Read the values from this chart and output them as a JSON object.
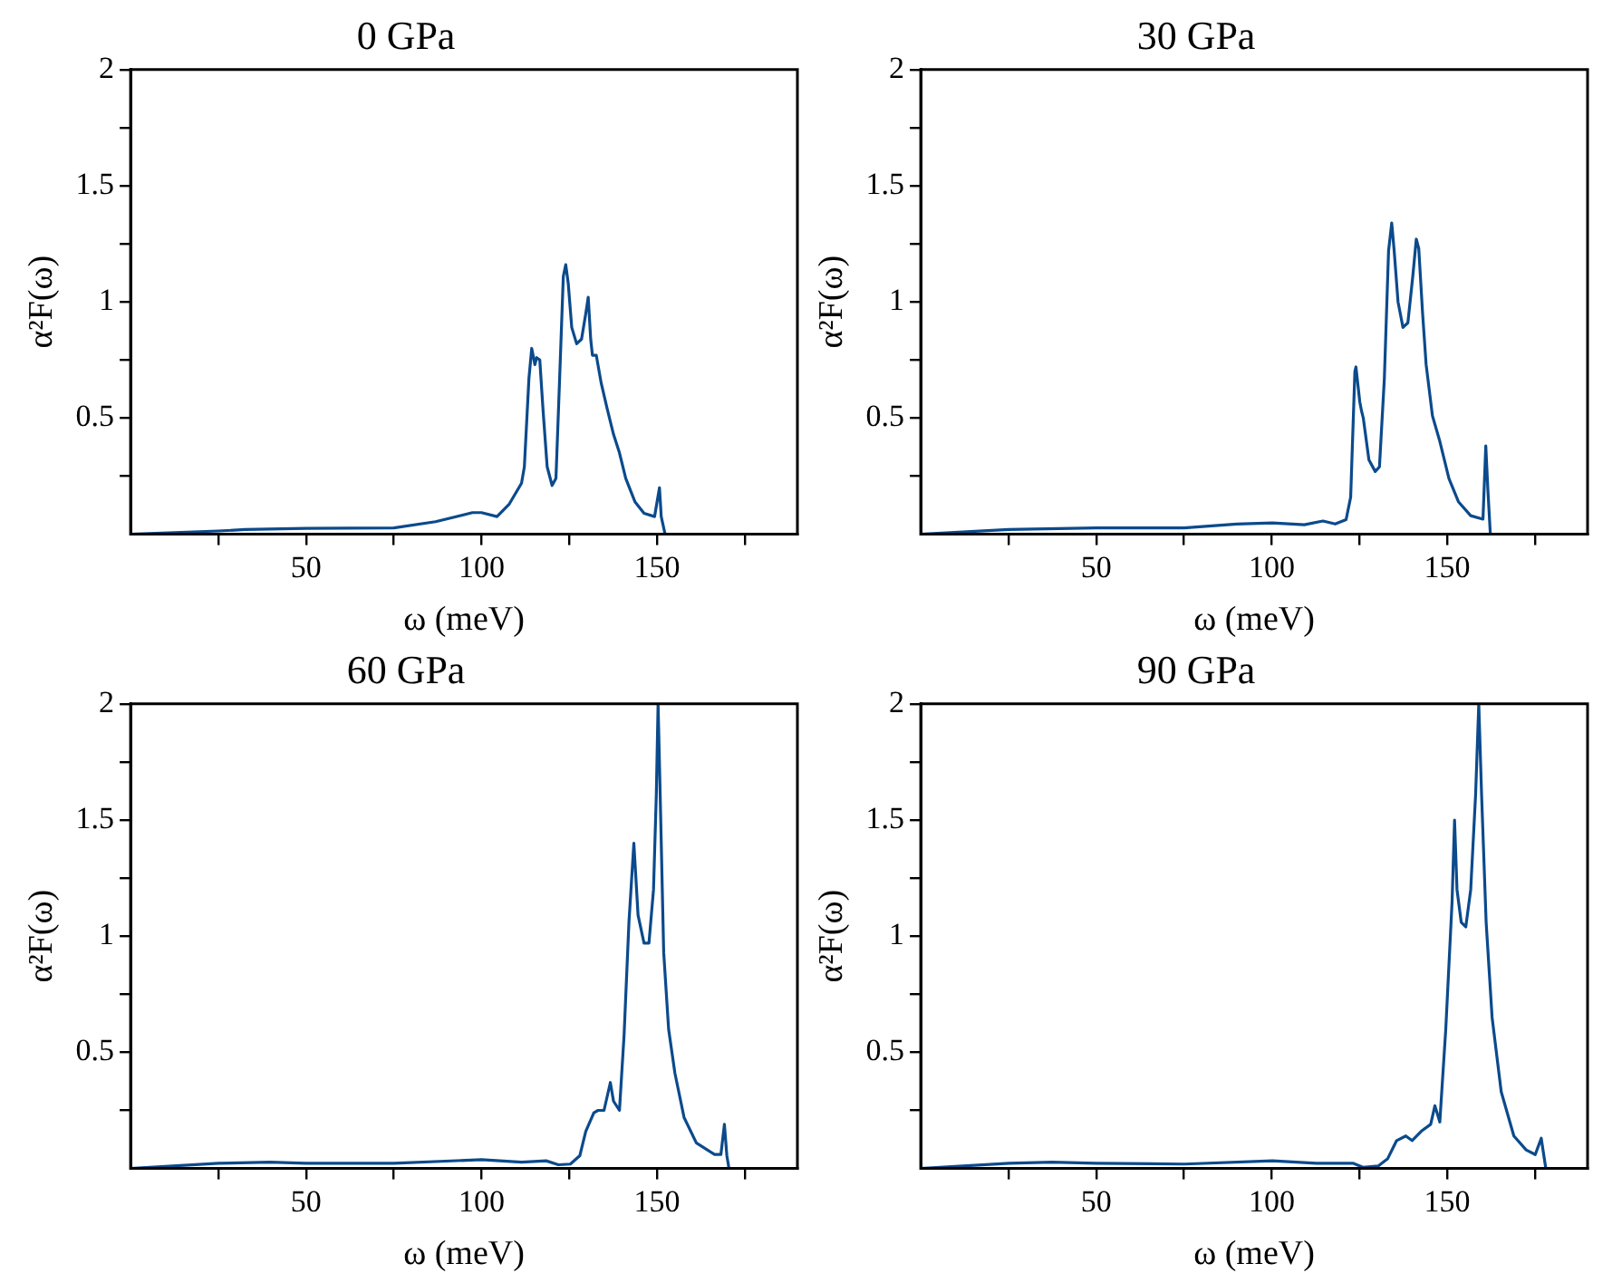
{
  "chart_data": [
    {
      "type": "line",
      "title": "0 GPa",
      "xlabel": "ω (meV)",
      "ylabel": "α²F(ω)",
      "color": "#0b4a8c",
      "x": [
        0,
        25,
        32.7,
        50,
        75,
        86.9,
        97.4,
        100,
        104.4,
        107.9,
        111.4,
        112.2,
        113.5,
        114.3,
        115.2,
        115.7,
        116.6,
        117.5,
        118.7,
        120.1,
        121.2,
        122.2,
        123.3,
        124,
        124.7,
        125.7,
        127.1,
        128.5,
        129.7,
        130.4,
        131.1,
        131.6,
        132.7,
        134.1,
        135.8,
        137.6,
        139.3,
        141.1,
        143.7,
        146.3,
        149.3,
        150.7,
        151.2,
        152.3
      ],
      "values": [
        0,
        0.014,
        0.02,
        0.025,
        0.027,
        0.054,
        0.093,
        0.093,
        0.076,
        0.13,
        0.22,
        0.29,
        0.67,
        0.8,
        0.73,
        0.76,
        0.75,
        0.54,
        0.29,
        0.21,
        0.24,
        0.65,
        1.11,
        1.16,
        1.08,
        0.89,
        0.82,
        0.84,
        0.95,
        1.02,
        0.84,
        0.77,
        0.77,
        0.65,
        0.54,
        0.43,
        0.35,
        0.24,
        0.14,
        0.09,
        0.076,
        0.2,
        0.076,
        0
      ],
      "xlim": [
        0,
        190
      ],
      "xticks": [
        {
          "value": 25,
          "label": null
        },
        50,
        {
          "value": 75,
          "label": null
        },
        100,
        {
          "value": 125,
          "label": null
        },
        150,
        {
          "value": 175,
          "label": null
        }
      ],
      "ylim": [
        0,
        2
      ],
      "yticks": [
        {
          "value": 0.25,
          "label": null
        },
        0.5,
        {
          "value": 0.75,
          "label": null
        },
        1,
        {
          "value": 1.25,
          "label": null
        },
        1.5,
        {
          "value": 1.75,
          "label": null
        },
        2
      ]
    },
    {
      "type": "line",
      "title": "30 GPa",
      "xlabel": "ω (meV)",
      "ylabel": "α²F(ω)",
      "color": "#0b4a8c",
      "x": [
        0,
        25.1,
        50,
        75,
        90,
        100.2,
        109.3,
        114.6,
        118.1,
        121.2,
        122.5,
        123.7,
        124,
        125.1,
        125.6,
        126.1,
        127.7,
        129.5,
        130.7,
        132.1,
        133.3,
        134.2,
        134.9,
        136,
        137.4,
        138.8,
        140.2,
        141.2,
        141.9,
        143,
        144,
        145.8,
        147.9,
        150.5,
        153.2,
        156.7,
        160.2,
        161,
        161.6,
        162.3
      ],
      "values": [
        0,
        0.02,
        0.027,
        0.027,
        0.044,
        0.049,
        0.041,
        0.057,
        0.044,
        0.063,
        0.16,
        0.7,
        0.72,
        0.57,
        0.53,
        0.5,
        0.32,
        0.27,
        0.29,
        0.67,
        1.22,
        1.34,
        1.22,
        1,
        0.89,
        0.91,
        1.11,
        1.27,
        1.23,
        0.95,
        0.73,
        0.51,
        0.4,
        0.24,
        0.14,
        0.08,
        0.065,
        0.38,
        0.19,
        0
      ],
      "xlim": [
        0,
        190
      ],
      "xticks": [
        {
          "value": 25,
          "label": null
        },
        50,
        {
          "value": 75,
          "label": null
        },
        100,
        {
          "value": 125,
          "label": null
        },
        150,
        {
          "value": 175,
          "label": null
        }
      ],
      "ylim": [
        0,
        2
      ],
      "yticks": [
        {
          "value": 0.25,
          "label": null
        },
        0.5,
        {
          "value": 0.75,
          "label": null
        },
        1,
        {
          "value": 1.25,
          "label": null
        },
        1.5,
        {
          "value": 1.75,
          "label": null
        },
        2
      ]
    },
    {
      "type": "line",
      "title": "60 GPa",
      "xlabel": "ω (meV)",
      "ylabel": "α²F(ω)",
      "color": "#0b4a8c",
      "x": [
        0,
        25,
        39.7,
        50,
        75,
        100,
        111.4,
        118.4,
        121.9,
        125.3,
        128,
        129.7,
        132,
        133.2,
        134.9,
        136.7,
        137.6,
        139.3,
        140.6,
        142,
        143.4,
        144.6,
        146.3,
        147.7,
        149,
        149.8,
        150.3,
        150.9,
        151.9,
        153.3,
        155.1,
        157.7,
        161.2,
        166.4,
        168.2,
        169.2,
        169.9,
        170.5
      ],
      "values": [
        0,
        0.022,
        0.027,
        0.022,
        0.022,
        0.038,
        0.027,
        0.033,
        0.016,
        0.019,
        0.055,
        0.16,
        0.24,
        0.25,
        0.25,
        0.37,
        0.29,
        0.25,
        0.57,
        1.06,
        1.4,
        1.09,
        0.97,
        0.97,
        1.2,
        1.61,
        2,
        1.61,
        0.93,
        0.6,
        0.41,
        0.22,
        0.11,
        0.06,
        0.06,
        0.19,
        0.055,
        0
      ],
      "xlim": [
        0,
        190
      ],
      "xticks": [
        {
          "value": 25,
          "label": null
        },
        50,
        {
          "value": 75,
          "label": null
        },
        100,
        {
          "value": 125,
          "label": null
        },
        150,
        {
          "value": 175,
          "label": null
        }
      ],
      "ylim": [
        0,
        2
      ],
      "yticks": [
        {
          "value": 0.25,
          "label": null
        },
        0.5,
        {
          "value": 0.75,
          "label": null
        },
        1,
        {
          "value": 1.25,
          "label": null
        },
        1.5,
        {
          "value": 1.75,
          "label": null
        },
        2
      ]
    },
    {
      "type": "line",
      "title": "90 GPa",
      "xlabel": "ω (meV)",
      "ylabel": "α²F(ω)",
      "color": "#0b4a8c",
      "x": [
        0,
        25.1,
        37.4,
        50,
        75.1,
        100.2,
        112.8,
        123.3,
        126,
        130.4,
        133,
        135.6,
        138.2,
        140,
        142.6,
        145.3,
        146.5,
        147.9,
        149.6,
        151.4,
        152.1,
        152.8,
        154,
        155.3,
        156.7,
        158.1,
        159,
        159.8,
        161.1,
        162.8,
        165.4,
        169,
        172.5,
        175.1,
        176.8,
        178.1
      ],
      "values": [
        0,
        0.022,
        0.027,
        0.022,
        0.019,
        0.033,
        0.022,
        0.022,
        0.005,
        0.011,
        0.041,
        0.12,
        0.14,
        0.12,
        0.16,
        0.19,
        0.27,
        0.2,
        0.6,
        1.15,
        1.5,
        1.2,
        1.06,
        1.04,
        1.2,
        1.61,
        2,
        1.61,
        1.06,
        0.65,
        0.33,
        0.14,
        0.08,
        0.06,
        0.13,
        0
      ],
      "xlim": [
        0,
        190
      ],
      "xticks": [
        {
          "value": 25,
          "label": null
        },
        50,
        {
          "value": 75,
          "label": null
        },
        100,
        {
          "value": 125,
          "label": null
        },
        150,
        {
          "value": 175,
          "label": null
        }
      ],
      "ylim": [
        0,
        2
      ],
      "yticks": [
        {
          "value": 0.25,
          "label": null
        },
        0.5,
        {
          "value": 0.75,
          "label": null
        },
        1,
        {
          "value": 1.25,
          "label": null
        },
        1.5,
        {
          "value": 1.75,
          "label": null
        },
        2
      ]
    }
  ]
}
